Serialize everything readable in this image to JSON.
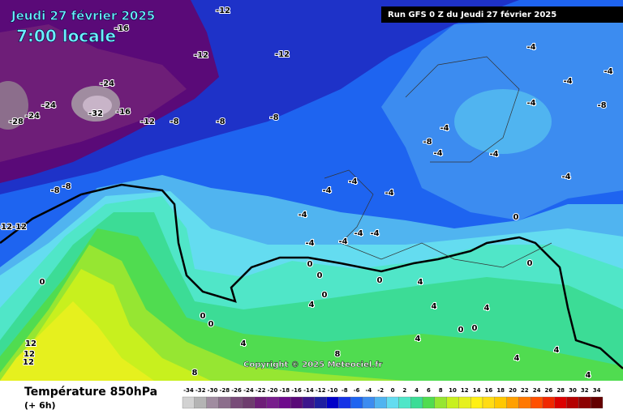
{
  "header": {
    "date": "Jeudi 27 février 2025",
    "time": "7:00 locale",
    "run": "Run GFS 0 Z du Jeudi 27 février 2025"
  },
  "map": {
    "copyright": "Copyright © 2025 Meteociel.fr",
    "labels": [
      -12,
      -16,
      -12,
      -12,
      -24,
      -24,
      -28,
      -24,
      -32,
      -16,
      -12,
      -8,
      -8,
      -8,
      -4,
      -4,
      -4,
      -8,
      -4,
      -4,
      -8,
      -4,
      -4,
      -4,
      -4,
      -4,
      -4,
      -4,
      -4,
      -4,
      -4,
      -4,
      -8,
      -8,
      -12,
      -12,
      0,
      0,
      0,
      0,
      0,
      0,
      0,
      0,
      0,
      4,
      4,
      4,
      4,
      4,
      4,
      4,
      4,
      4,
      8,
      8,
      12,
      12,
      12,
      0,
      0
    ]
  },
  "legend": {
    "title": "Température 850hPa",
    "subtitle": "(+ 6h)",
    "values": [
      -34,
      -32,
      -30,
      -28,
      -26,
      -24,
      -22,
      -20,
      -18,
      -16,
      -14,
      -12,
      -10,
      -8,
      -6,
      -4,
      -2,
      0,
      2,
      4,
      6,
      8,
      10,
      12,
      14,
      16,
      18,
      20,
      22,
      24,
      26,
      28,
      30,
      32,
      34
    ],
    "colors": [
      "#d2d2d2",
      "#b4b4b4",
      "#a08ca0",
      "#8c6e8c",
      "#784b78",
      "#6e3c6e",
      "#6e1e78",
      "#781e8c",
      "#6e0a8c",
      "#5a0a78",
      "#3c148c",
      "#1e1ea0",
      "#0000c8",
      "#1432e6",
      "#1e64f0",
      "#3c8cf0",
      "#50b4f0",
      "#64dcf0",
      "#50e6c8",
      "#3cdc96",
      "#50dc50",
      "#96e632",
      "#c8f01e",
      "#e6f01e",
      "#fff014",
      "#ffdc14",
      "#ffc800",
      "#ffa000",
      "#ff7800",
      "#ff5000",
      "#f02800",
      "#dc0000",
      "#b40000",
      "#8c0000",
      "#640000"
    ]
  }
}
